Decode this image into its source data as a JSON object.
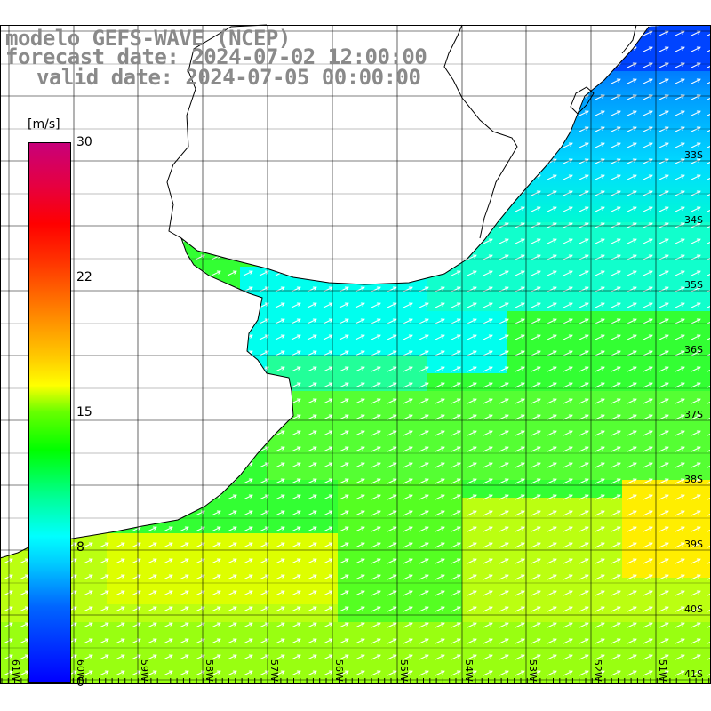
{
  "header": {
    "title": "modelo GEFS-WAVE (NCEP)",
    "forecast": "forecast date: 2024-07-02 12:00:00",
    "valid": "valid date: 2024-07-05 00:00:00"
  },
  "colorbar": {
    "unit": "[m/s]",
    "min": 0,
    "max": 30,
    "ticks": [
      "30",
      "22",
      "15",
      "8",
      "0"
    ],
    "tick_values": [
      30,
      22,
      15,
      8,
      0
    ],
    "colors": [
      "#0000ff",
      "#00ffff",
      "#00ff00",
      "#ffff00",
      "#ff0000",
      "#c8007a"
    ]
  },
  "map": {
    "lon_labels": [
      "61W",
      "60W",
      "59W",
      "58W",
      "57W",
      "56W",
      "55W",
      "54W",
      "53W",
      "52W",
      "51W"
    ],
    "lat_labels": [
      "33S",
      "34S",
      "35S",
      "36S",
      "37S",
      "38S",
      "39S",
      "40S",
      "41S"
    ],
    "land_color": "#ffffff",
    "coast_color": "#000000",
    "grid_color": "#000000",
    "arrow_color": "#ffffff",
    "wind_direction": "from SW toward NE"
  }
}
